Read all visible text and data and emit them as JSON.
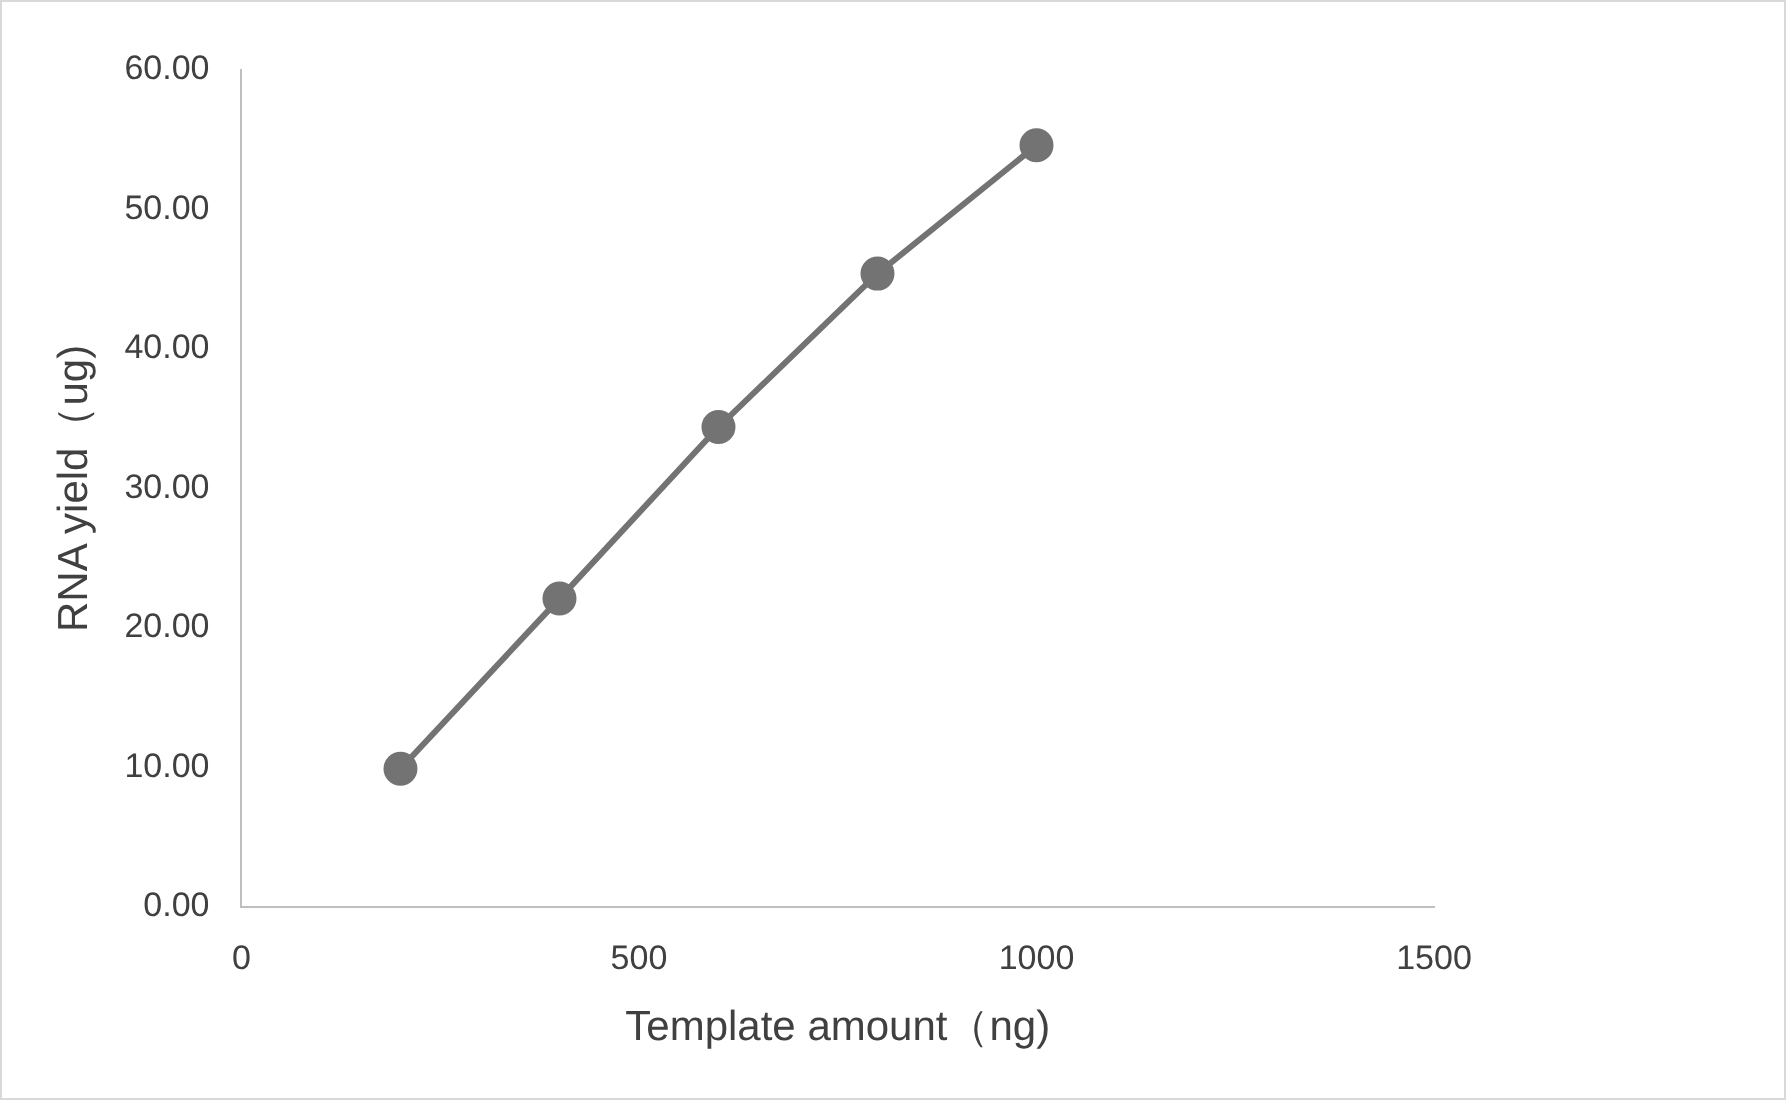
{
  "chart_data": {
    "type": "line",
    "xlabel": "Template amount（ng)",
    "ylabel": "RNA yield（ug)",
    "x": [
      200,
      400,
      600,
      800,
      1000
    ],
    "series": [
      {
        "color": "#737373",
        "values": [
          9.9,
          22.1,
          34.4,
          45.4,
          54.6
        ]
      }
    ],
    "xlim": [
      0,
      1500
    ],
    "xticks": [
      0,
      500,
      1000,
      1500
    ],
    "ylim": [
      0,
      60
    ],
    "yticks": [
      {
        "value": 0,
        "label": "0.00"
      },
      {
        "value": 10,
        "label": "10.00"
      },
      {
        "value": 20,
        "label": "20.00"
      },
      {
        "value": 30,
        "label": "30.00"
      },
      {
        "value": 40,
        "label": "40.00"
      },
      {
        "value": 50,
        "label": "50.00"
      },
      {
        "value": 60,
        "label": "60.00"
      }
    ],
    "grid": false,
    "legend": false,
    "marker": "circle",
    "line_style": "solid"
  }
}
